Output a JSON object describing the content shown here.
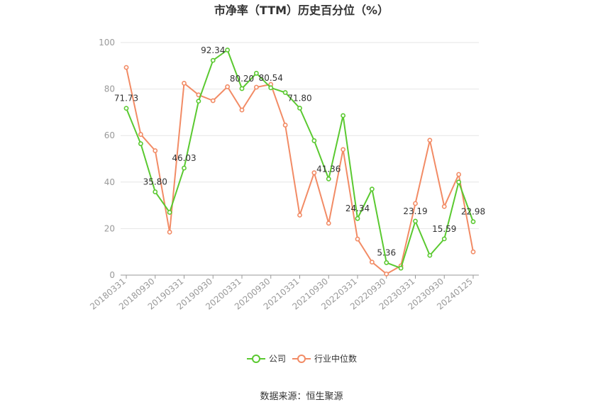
{
  "chart_data": {
    "type": "line",
    "title": "市净率（TTM）历史百分位（%）",
    "source": "数据来源：恒生聚源",
    "ylim": [
      0,
      100
    ],
    "yticks": [
      0,
      20,
      40,
      60,
      80,
      100
    ],
    "xtick_labels": [
      "20180331",
      "20180930",
      "20190331",
      "20190930",
      "20200331",
      "20200930",
      "20210331",
      "20210930",
      "20220331",
      "20220930",
      "20230331",
      "20230930",
      "20240125"
    ],
    "x_count": 25,
    "series": [
      {
        "name": "公司",
        "color": "#5ac930",
        "values": [
          71.73,
          56.5,
          35.8,
          27.0,
          46.03,
          74.8,
          92.34,
          96.8,
          80.2,
          86.8,
          80.54,
          78.5,
          71.8,
          57.8,
          41.36,
          68.6,
          24.34,
          37.0,
          5.36,
          3.0,
          23.19,
          8.5,
          15.59,
          40.0,
          22.98
        ],
        "data_labels": {
          "0": "71.73",
          "2": "35.80",
          "4": "46.03",
          "6": "92.34",
          "8": "80.20",
          "10": "80.54",
          "12": "71.80",
          "14": "41.36",
          "16": "24.34",
          "18": "5.36",
          "20": "23.19",
          "22": "15.59",
          "24": "22.98"
        }
      },
      {
        "name": "行业中位数",
        "color": "#f28b65",
        "values": [
          89.3,
          60.5,
          53.5,
          18.5,
          82.5,
          77.5,
          75.0,
          81.0,
          71.0,
          80.8,
          82.0,
          64.5,
          25.8,
          44.0,
          22.3,
          54.0,
          15.5,
          5.6,
          0.5,
          4.0,
          30.8,
          58.0,
          29.5,
          43.3,
          10.0
        ]
      }
    ],
    "legend": {
      "position": "bottom"
    },
    "grid": true
  }
}
